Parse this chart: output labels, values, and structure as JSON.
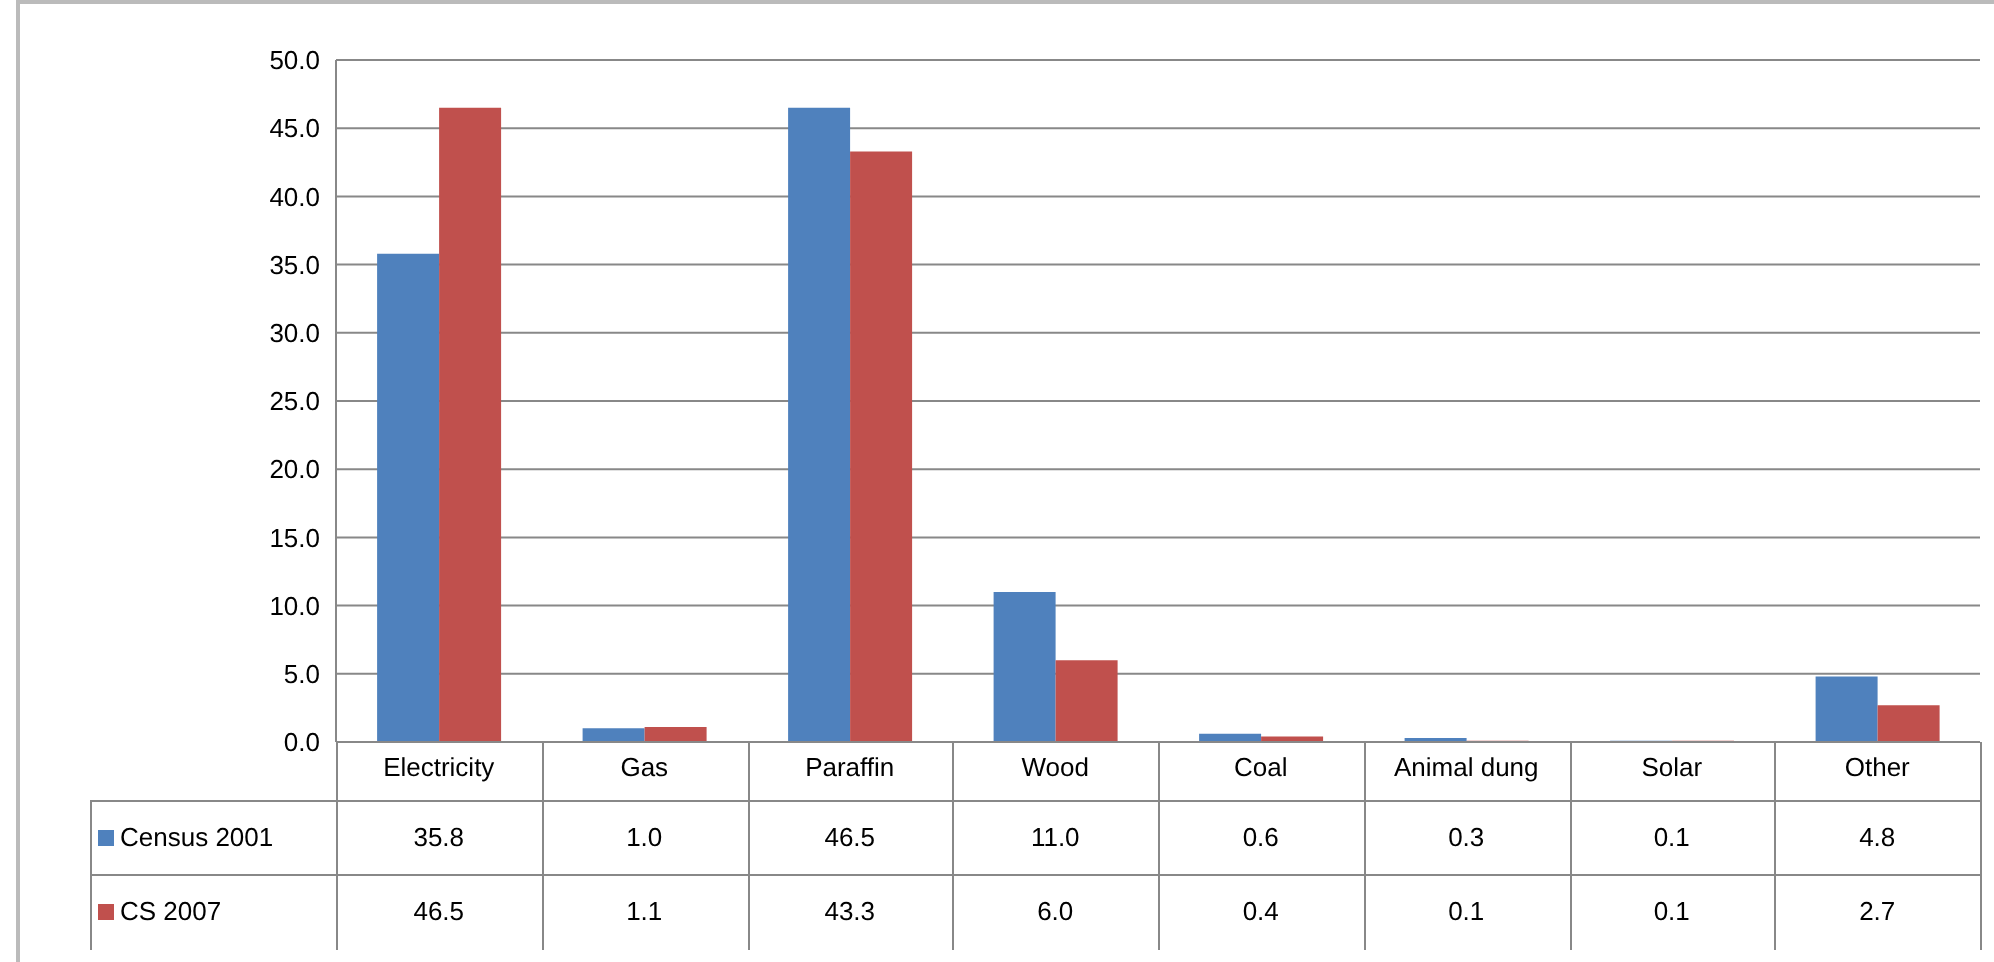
{
  "chart_data": {
    "type": "bar",
    "categories": [
      "Electricity",
      "Gas",
      "Paraffin",
      "Wood",
      "Coal",
      "Animal dung",
      "Solar",
      "Other"
    ],
    "series": [
      {
        "name": "Census 2001",
        "color": "#4f81bd",
        "values": [
          35.8,
          1.0,
          46.5,
          11.0,
          0.6,
          0.3,
          0.1,
          4.8
        ],
        "value_labels": [
          "35.8",
          "1.0",
          "46.5",
          "11.0",
          "0.6",
          "0.3",
          "0.1",
          "4.8"
        ]
      },
      {
        "name": "CS 2007",
        "color": "#c0504d",
        "values": [
          46.5,
          1.1,
          43.3,
          6.0,
          0.4,
          0.1,
          0.1,
          2.7
        ],
        "value_labels": [
          "46.5",
          "1.1",
          "43.3",
          "6.0",
          "0.4",
          "0.1",
          "0.1",
          "2.7"
        ]
      }
    ],
    "ylim": [
      0,
      50
    ],
    "yticks": [
      {
        "value": 0,
        "label": "0.0"
      },
      {
        "value": 5,
        "label": "5.0"
      },
      {
        "value": 10,
        "label": "10.0"
      },
      {
        "value": 15,
        "label": "15.0"
      },
      {
        "value": 20,
        "label": "20.0"
      },
      {
        "value": 25,
        "label": "25.0"
      },
      {
        "value": 30,
        "label": "30.0"
      },
      {
        "value": 35,
        "label": "35.0"
      },
      {
        "value": 40,
        "label": "40.0"
      },
      {
        "value": 45,
        "label": "45.0"
      },
      {
        "value": 50,
        "label": "50.0"
      }
    ],
    "grid": "y",
    "legend": "bottom left"
  }
}
